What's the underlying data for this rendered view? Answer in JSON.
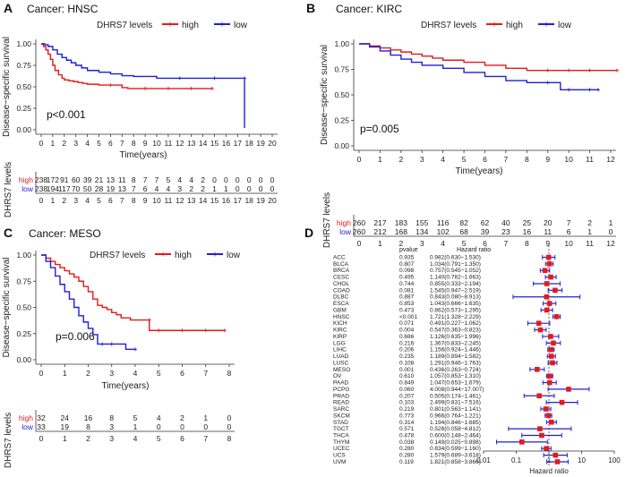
{
  "chart_data": [
    {
      "id": "A",
      "type": "line",
      "panel_label": "A",
      "title": "Cancer: HNSC",
      "legend_title": "DHRS7 levels",
      "legend_entries": [
        "high",
        "low"
      ],
      "xlabel": "Time(years)",
      "ylabel": "Disease−specific survival",
      "xlim": [
        0,
        20
      ],
      "ylim": [
        0,
        1
      ],
      "xticks": [
        0,
        1,
        2,
        3,
        4,
        5,
        6,
        7,
        8,
        9,
        10,
        11,
        12,
        13,
        14,
        15,
        16,
        17,
        18,
        19,
        20
      ],
      "yticks": [
        0.0,
        0.25,
        0.5,
        0.75,
        1.0
      ],
      "pvalue_text": "p<0.001",
      "series": [
        {
          "name": "high",
          "color": "#e31a1c",
          "x": [
            0,
            0.2,
            0.4,
            0.6,
            0.8,
            1.0,
            1.2,
            1.5,
            1.8,
            2.0,
            2.4,
            2.8,
            3.2,
            3.6,
            4.0,
            5.0,
            6.0,
            7.0,
            7.5,
            9.0,
            11.0,
            13.0,
            14.8
          ],
          "y": [
            1.0,
            0.97,
            0.93,
            0.88,
            0.82,
            0.75,
            0.69,
            0.64,
            0.6,
            0.58,
            0.57,
            0.56,
            0.55,
            0.54,
            0.53,
            0.52,
            0.52,
            0.49,
            0.48,
            0.48,
            0.48,
            0.48,
            0.48
          ]
        },
        {
          "name": "low",
          "color": "#1f1fd6",
          "x": [
            0,
            0.3,
            0.6,
            1.0,
            1.4,
            1.8,
            2.2,
            2.6,
            3.0,
            3.5,
            4.0,
            5.0,
            6.0,
            7.0,
            8.0,
            10.0,
            12.0,
            15.0,
            17.6,
            17.6
          ],
          "y": [
            1.0,
            0.99,
            0.97,
            0.93,
            0.88,
            0.84,
            0.81,
            0.78,
            0.75,
            0.72,
            0.69,
            0.67,
            0.65,
            0.63,
            0.62,
            0.6,
            0.6,
            0.6,
            0.6,
            0.02
          ]
        }
      ],
      "risk_table": {
        "ylabel": "DHRS7 levels",
        "rows": [
          {
            "name": "high",
            "color": "#e31a1c",
            "values": [
              "238",
              "172",
              "91",
              "60",
              "39",
              "21",
              "13",
              "11",
              "8",
              "7",
              "7",
              "5",
              "4",
              "4",
              "2",
              "0",
              "0",
              "0",
              "0",
              "0",
              "0"
            ]
          },
          {
            "name": "low",
            "color": "#1f1fd6",
            "values": [
              "238",
              "194",
              "117",
              "70",
              "50",
              "28",
              "19",
              "13",
              "7",
              "6",
              "4",
              "4",
              "3",
              "2",
              "2",
              "1",
              "1",
              "0",
              "0",
              "0",
              "0"
            ]
          }
        ]
      }
    },
    {
      "id": "B",
      "type": "line",
      "panel_label": "B",
      "title": "Cancer: KIRC",
      "legend_title": "DHRS7 levels",
      "legend_entries": [
        "high",
        "low"
      ],
      "xlabel": "Time(years)",
      "ylabel": "Disease−specific survival",
      "xlim": [
        0,
        12
      ],
      "ylim": [
        0,
        1
      ],
      "xticks": [
        0,
        1,
        2,
        3,
        4,
        5,
        6,
        7,
        8,
        9,
        10,
        11,
        12
      ],
      "yticks": [
        0.0,
        0.25,
        0.5,
        0.75,
        1.0
      ],
      "pvalue_text": "p=0.005",
      "series": [
        {
          "name": "high",
          "color": "#e31a1c",
          "x": [
            0,
            0.5,
            1.0,
            1.5,
            2.0,
            2.5,
            3.0,
            3.5,
            4.0,
            5.0,
            6.0,
            7.0,
            8.0,
            9.0,
            10.0,
            11.0,
            12.3
          ],
          "y": [
            1.0,
            0.98,
            0.96,
            0.94,
            0.92,
            0.9,
            0.88,
            0.86,
            0.84,
            0.82,
            0.79,
            0.76,
            0.74,
            0.74,
            0.74,
            0.74,
            0.74
          ]
        },
        {
          "name": "low",
          "color": "#1f1fd6",
          "x": [
            0,
            0.5,
            1.0,
            1.5,
            2.0,
            2.5,
            3.0,
            4.0,
            5.0,
            6.0,
            7.0,
            8.0,
            9.0,
            9.6,
            10.0,
            11.0,
            11.4
          ],
          "y": [
            1.0,
            0.97,
            0.93,
            0.89,
            0.85,
            0.82,
            0.79,
            0.76,
            0.72,
            0.68,
            0.64,
            0.62,
            0.62,
            0.55,
            0.55,
            0.55,
            0.55
          ]
        }
      ],
      "risk_table": {
        "ylabel": "DHRS7 levels",
        "rows": [
          {
            "name": "high",
            "color": "#e31a1c",
            "values": [
              "260",
              "217",
              "183",
              "155",
              "116",
              "82",
              "62",
              "40",
              "25",
              "20",
              "7",
              "2",
              "1"
            ]
          },
          {
            "name": "low",
            "color": "#1f1fd6",
            "values": [
              "260",
              "212",
              "168",
              "134",
              "102",
              "68",
              "39",
              "23",
              "16",
              "11",
              "6",
              "1",
              "0"
            ]
          }
        ]
      }
    },
    {
      "id": "C",
      "type": "line",
      "panel_label": "C",
      "title": "Cancer: MESO",
      "legend_title": "DHRS7 levels",
      "legend_entries": [
        "high",
        "low"
      ],
      "xlabel": "Time(years)",
      "ylabel": "Disease−specific survival",
      "xlim": [
        0,
        8
      ],
      "ylim": [
        0,
        1
      ],
      "xticks": [
        0,
        1,
        2,
        3,
        4,
        5,
        6,
        7,
        8
      ],
      "yticks": [
        0.0,
        0.25,
        0.5,
        0.75,
        1.0
      ],
      "pvalue_text": "p=0.006",
      "series": [
        {
          "name": "high",
          "color": "#e31a1c",
          "x": [
            0,
            0.2,
            0.4,
            0.6,
            0.8,
            1.0,
            1.2,
            1.4,
            1.6,
            1.8,
            2.0,
            2.2,
            2.4,
            2.6,
            2.8,
            3.0,
            3.2,
            3.4,
            3.8,
            4.6,
            4.6,
            5.0,
            6.0,
            7.0,
            7.8
          ],
          "y": [
            1.0,
            0.97,
            0.94,
            0.91,
            0.88,
            0.85,
            0.82,
            0.79,
            0.75,
            0.7,
            0.65,
            0.58,
            0.52,
            0.5,
            0.48,
            0.45,
            0.43,
            0.4,
            0.38,
            0.38,
            0.28,
            0.28,
            0.28,
            0.28,
            0.28
          ]
        },
        {
          "name": "low",
          "color": "#1f1fd6",
          "x": [
            0,
            0.2,
            0.4,
            0.6,
            0.8,
            1.0,
            1.2,
            1.4,
            1.6,
            1.8,
            2.0,
            2.2,
            2.4,
            2.6,
            3.0,
            3.6,
            4.0
          ],
          "y": [
            1.0,
            0.94,
            0.88,
            0.8,
            0.72,
            0.65,
            0.58,
            0.5,
            0.42,
            0.36,
            0.3,
            0.24,
            0.15,
            0.15,
            0.15,
            0.1,
            0.1
          ]
        }
      ],
      "risk_table": {
        "ylabel": "DHRS7 levels",
        "rows": [
          {
            "name": "high",
            "color": "#e31a1c",
            "values": [
              "32",
              "24",
              "16",
              "8",
              "5",
              "4",
              "2",
              "1",
              "0"
            ]
          },
          {
            "name": "low",
            "color": "#1f1fd6",
            "values": [
              "33",
              "19",
              "8",
              "3",
              "1",
              "0",
              "0",
              "0",
              "0"
            ]
          }
        ]
      }
    },
    {
      "id": "D",
      "type": "scatter",
      "subtype": "forest",
      "panel_label": "D",
      "xlabel": "Hazard ratio",
      "xscale": "log",
      "xlim": [
        0.01,
        100
      ],
      "xticks": [
        0.01,
        0.1,
        1,
        10,
        100
      ],
      "xtick_labels": [
        "0.01",
        "0.1",
        "1",
        "10",
        "100"
      ],
      "reference_line": 1,
      "col_pvalue_header": "pvalue",
      "col_hr_header": "Hazard ratio",
      "rows": [
        {
          "cancer": "ACC",
          "pvalue": "0.935",
          "hr_text": "0.982(0.630−1.530)",
          "hr": 0.982,
          "lo": 0.63,
          "hi": 1.53
        },
        {
          "cancer": "BLCA",
          "pvalue": "0.807",
          "hr_text": "1.034(0.791−1.350)",
          "hr": 1.034,
          "lo": 0.791,
          "hi": 1.35
        },
        {
          "cancer": "BRCA",
          "pvalue": "0.098",
          "hr_text": "0.757(0.545−1.052)",
          "hr": 0.757,
          "lo": 0.545,
          "hi": 1.052
        },
        {
          "cancer": "CESC",
          "pvalue": "0.495",
          "hr_text": "1.140(0.782−1.663)",
          "hr": 1.14,
          "lo": 0.782,
          "hi": 1.663
        },
        {
          "cancer": "CHOL",
          "pvalue": "0.744",
          "hr_text": "0.855(0.333−2.194)",
          "hr": 0.855,
          "lo": 0.333,
          "hi": 2.194
        },
        {
          "cancer": "COAD",
          "pvalue": "0.081",
          "hr_text": "1.545(0.947−2.519)",
          "hr": 1.545,
          "lo": 0.947,
          "hi": 2.519
        },
        {
          "cancer": "DLBC",
          "pvalue": "0.887",
          "hr_text": "0.843(0.080−8.913)",
          "hr": 0.843,
          "lo": 0.08,
          "hi": 8.913
        },
        {
          "cancer": "ESCA",
          "pvalue": "0.853",
          "hr_text": "1.043(0.666−1.635)",
          "hr": 1.043,
          "lo": 0.666,
          "hi": 1.635
        },
        {
          "cancer": "GBM",
          "pvalue": "0.473",
          "hr_text": "0.862(0.573−1.295)",
          "hr": 0.862,
          "lo": 0.573,
          "hi": 1.295
        },
        {
          "cancer": "HNSC",
          "pvalue": "<0.001",
          "hr_text": "1.721(1.328−2.229)",
          "hr": 1.721,
          "lo": 1.328,
          "hi": 2.229
        },
        {
          "cancer": "KICH",
          "pvalue": "0.071",
          "hr_text": "0.491(0.227−1.062)",
          "hr": 0.491,
          "lo": 0.227,
          "hi": 1.062
        },
        {
          "cancer": "KIRC",
          "pvalue": "0.004",
          "hr_text": "0.547(0.363−0.823)",
          "hr": 0.547,
          "lo": 0.363,
          "hi": 0.823
        },
        {
          "cancer": "KIRP",
          "pvalue": "0.686",
          "hr_text": "1.126(0.635−1.996)",
          "hr": 1.126,
          "lo": 0.635,
          "hi": 1.996
        },
        {
          "cancer": "LGG",
          "pvalue": "0.216",
          "hr_text": "1.367(0.833−2.245)",
          "hr": 1.367,
          "lo": 0.833,
          "hi": 2.245
        },
        {
          "cancer": "LIHC",
          "pvalue": "0.206",
          "hr_text": "1.156(0.924−1.446)",
          "hr": 1.156,
          "lo": 0.924,
          "hi": 1.446
        },
        {
          "cancer": "LUAD",
          "pvalue": "0.235",
          "hr_text": "1.189(0.894−1.582)",
          "hr": 1.189,
          "lo": 0.894,
          "hi": 1.582
        },
        {
          "cancer": "LUSC",
          "pvalue": "0.108",
          "hr_text": "1.291(0.946−1.763)",
          "hr": 1.291,
          "lo": 0.946,
          "hi": 1.763
        },
        {
          "cancer": "MESO",
          "pvalue": "0.001",
          "hr_text": "0.436(0.263−0.724)",
          "hr": 0.436,
          "lo": 0.263,
          "hi": 0.724
        },
        {
          "cancer": "OV",
          "pvalue": "0.610",
          "hr_text": "1.057(0.853−1.310)",
          "hr": 1.057,
          "lo": 0.853,
          "hi": 1.31
        },
        {
          "cancer": "PAAD",
          "pvalue": "0.849",
          "hr_text": "1.047(0.653−1.679)",
          "hr": 1.047,
          "lo": 0.653,
          "hi": 1.679
        },
        {
          "cancer": "PCPG",
          "pvalue": "0.060",
          "hr_text": "4.008(0.944−17.007)",
          "hr": 4.008,
          "lo": 0.944,
          "hi": 17.007
        },
        {
          "cancer": "PRAD",
          "pvalue": "0.207",
          "hr_text": "0.505(0.174−1.461)",
          "hr": 0.505,
          "lo": 0.174,
          "hi": 1.461
        },
        {
          "cancer": "READ",
          "pvalue": "0.103",
          "hr_text": "2.499(0.831−7.516)",
          "hr": 2.499,
          "lo": 0.831,
          "hi": 7.516
        },
        {
          "cancer": "SARC",
          "pvalue": "0.219",
          "hr_text": "0.801(0.563−1.141)",
          "hr": 0.801,
          "lo": 0.563,
          "hi": 1.141
        },
        {
          "cancer": "SKCM",
          "pvalue": "0.773",
          "hr_text": "0.966(0.764−1.221)",
          "hr": 0.966,
          "lo": 0.764,
          "hi": 1.221
        },
        {
          "cancer": "STAD",
          "pvalue": "0.314",
          "hr_text": "1.194(0.846−1.685)",
          "hr": 1.194,
          "lo": 0.846,
          "hi": 1.685
        },
        {
          "cancer": "TGCT",
          "pvalue": "0.571",
          "hr_text": "0.528(0.058−4.812)",
          "hr": 0.528,
          "lo": 0.058,
          "hi": 4.812
        },
        {
          "cancer": "THCA",
          "pvalue": "0.478",
          "hr_text": "0.600(0.148−2.464)",
          "hr": 0.6,
          "lo": 0.148,
          "hi": 2.464
        },
        {
          "cancer": "THYM",
          "pvalue": "0.038",
          "hr_text": "0.149(0.025−0.898)",
          "hr": 0.149,
          "lo": 0.025,
          "hi": 0.898
        },
        {
          "cancer": "UCEC",
          "pvalue": "0.280",
          "hr_text": "0.834(0.599−1.160)",
          "hr": 0.834,
          "lo": 0.599,
          "hi": 1.16
        },
        {
          "cancer": "UCS",
          "pvalue": "0.280",
          "hr_text": "1.579(0.689−3.618)",
          "hr": 1.579,
          "lo": 0.689,
          "hi": 3.618
        },
        {
          "cancer": "UVM",
          "pvalue": "0.119",
          "hr_text": "1.821(0.858−3.866)",
          "hr": 1.821,
          "lo": 0.858,
          "hi": 3.866
        }
      ],
      "ci_color": "#1f1fd6",
      "point_color": "#e31a1c"
    }
  ]
}
